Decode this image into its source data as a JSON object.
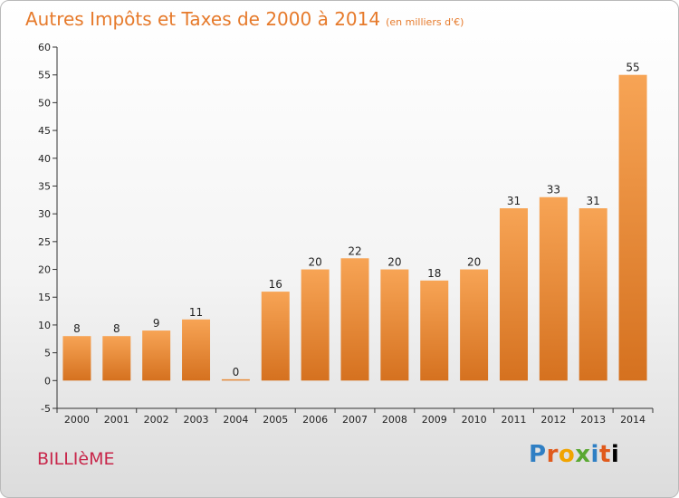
{
  "header": {
    "title": "Autres Impôts et Taxes de 2000 à 2014",
    "unit": "(en milliers d'€)"
  },
  "footer": {
    "town": "BILLIèME",
    "brand": [
      "P",
      "r",
      "o",
      "x",
      "i",
      "t",
      "i"
    ]
  },
  "colors": {
    "bar_top": "#f7a455",
    "bar_bottom": "#d5711f",
    "title": "#e67a2b",
    "town": "#c8264a"
  },
  "chart_data": {
    "type": "bar",
    "title": "Autres Impôts et Taxes de 2000 à 2014",
    "subtitle": "(en milliers d'€)",
    "xlabel": "",
    "ylabel": "",
    "categories": [
      "2000",
      "2001",
      "2002",
      "2003",
      "2004",
      "2005",
      "2006",
      "2007",
      "2008",
      "2009",
      "2010",
      "2011",
      "2012",
      "2013",
      "2014"
    ],
    "values": [
      8,
      8,
      9,
      11,
      0,
      16,
      20,
      22,
      20,
      18,
      20,
      31,
      33,
      31,
      55
    ],
    "ylim": [
      -5,
      60
    ],
    "yticks": [
      -5,
      0,
      5,
      10,
      15,
      20,
      25,
      30,
      35,
      40,
      45,
      50,
      55,
      60
    ],
    "grid": false,
    "legend": "none",
    "data_labels": true
  }
}
